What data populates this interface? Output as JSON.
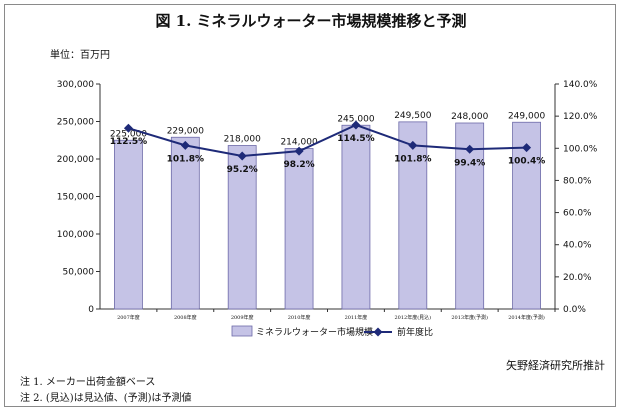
{
  "chart_data": {
    "type": "bar",
    "title": "図 1. ミネラルウォーター市場規模推移と予測",
    "unit_label": "単位：百万円",
    "categories": [
      "2007年度",
      "2008年度",
      "2009年度",
      "2010年度",
      "2011年度",
      "2012年度(見込)",
      "2013年度(予測)",
      "2014年度(予測)"
    ],
    "series": [
      {
        "name": "ミネラルウォーター市場規模",
        "type": "bar",
        "axis": "left",
        "values": [
          225000,
          229000,
          218000,
          214000,
          245000,
          249500,
          248000,
          249000
        ],
        "labels": [
          "225,000",
          "229,000",
          "218,000",
          "214,000",
          "245,000",
          "249,500",
          "248,000",
          "249,000"
        ],
        "color": "#c5c3e6"
      },
      {
        "name": "前年度比",
        "type": "line",
        "axis": "right",
        "values": [
          112.5,
          101.8,
          95.2,
          98.2,
          114.5,
          101.8,
          99.4,
          100.4
        ],
        "labels": [
          "112.5%",
          "101.8%",
          "95.2%",
          "98.2%",
          "114.5%",
          "101.8%",
          "99.4%",
          "100.4%"
        ],
        "color": "#1e2a78"
      }
    ],
    "y_left": {
      "min": 0,
      "max": 300000,
      "ticks": [
        "0",
        "50,000",
        "100,000",
        "150,000",
        "200,000",
        "250,000",
        "300,000"
      ]
    },
    "y_right": {
      "min": 0,
      "max": 140,
      "ticks": [
        "0.0%",
        "20.0%",
        "40.0%",
        "60.0%",
        "80.0%",
        "100.0%",
        "120.0%",
        "140.0%"
      ]
    },
    "grid": false,
    "legend_position": "bottom"
  },
  "credit": "矢野経済研究所推計",
  "notes": [
    "注 1. メーカー出荷金額ベース",
    "注 2. (見込)は見込値、(予測)は予測値"
  ]
}
